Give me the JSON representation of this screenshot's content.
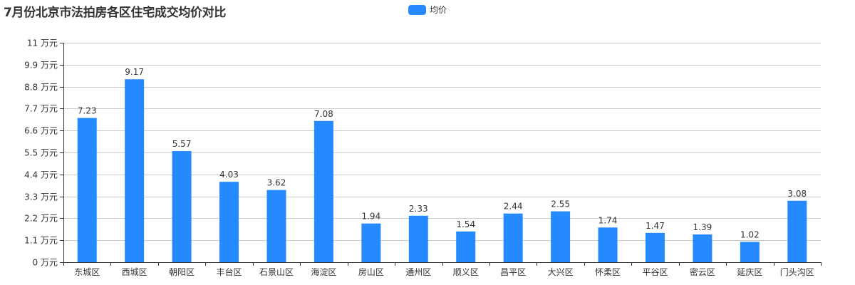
{
  "chart_data": {
    "type": "bar",
    "title": "7月份北京市法拍房各区住宅成交均价对比",
    "xlabel": "",
    "ylabel": "",
    "y_unit_suffix": " 万元",
    "ylim": [
      0,
      11
    ],
    "y_ticks": [
      0,
      1.1,
      2.2,
      3.3,
      4.4,
      5.5,
      6.6,
      7.7,
      8.8,
      9.9,
      11
    ],
    "y_tick_labels": [
      "0 万元",
      "1.1 万元",
      "2.2 万元",
      "3.3 万元",
      "4.4 万元",
      "5.5 万元",
      "6.6 万元",
      "7.7 万元",
      "8.8 万元",
      "9.9 万元",
      "11 万元"
    ],
    "grid": true,
    "legend_position": "top",
    "categories": [
      "东城区",
      "西城区",
      "朝阳区",
      "丰台区",
      "石景山区",
      "海淀区",
      "房山区",
      "通州区",
      "顺义区",
      "昌平区",
      "大兴区",
      "怀柔区",
      "平谷区",
      "密云区",
      "延庆区",
      "门头沟区"
    ],
    "series": [
      {
        "name": "均价",
        "color": "#2589ff",
        "values": [
          7.23,
          9.17,
          5.57,
          4.03,
          3.62,
          7.08,
          1.94,
          2.33,
          1.54,
          2.44,
          2.55,
          1.74,
          1.47,
          1.39,
          1.02,
          3.08
        ]
      }
    ]
  },
  "colors": {
    "bar": "#2589ff",
    "grid": "#cccccc",
    "axis": "#333333",
    "text": "#333333"
  }
}
